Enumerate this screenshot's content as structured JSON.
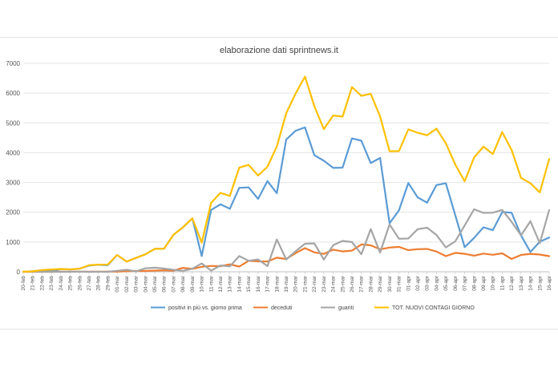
{
  "chart_data": {
    "type": "line",
    "title": "elaborazione dati sprintnews.it",
    "xlabel": "",
    "ylabel": "",
    "ylim": [
      0,
      7000
    ],
    "yticks": [
      0,
      1000,
      2000,
      3000,
      4000,
      5000,
      6000,
      7000
    ],
    "grid": true,
    "legend_position": "bottom",
    "categories": [
      "20-feb",
      "21-feb",
      "22-feb",
      "23-feb",
      "24-feb",
      "25-feb",
      "26-feb",
      "27-feb",
      "28-feb",
      "29-feb",
      "01-mar",
      "02-mar",
      "03-mar",
      "04-mar",
      "05-mar",
      "06-mar",
      "07-mar",
      "08-mar",
      "09-mar",
      "10-mar",
      "11-mar",
      "12-mar",
      "13-mar",
      "14-mar",
      "15-mar",
      "16-mar",
      "17-mar",
      "18-mar",
      "19-mar",
      "20-mar",
      "21-mar",
      "22-mar",
      "23-mar",
      "24-mar",
      "25-mar",
      "26-mar",
      "27-mar",
      "28-mar",
      "29-mar",
      "30-mar",
      "31-mar",
      "01-apr",
      "02-apr",
      "03-apr",
      "04-apr",
      "05-apr",
      "06-apr",
      "07-apr",
      "08-apr",
      "09-apr",
      "10-apr",
      "11-apr",
      "12-apr",
      "13-apr",
      "14-apr",
      "15-apr",
      "16-apr"
    ],
    "series": [
      {
        "name": "positivi in più vs. giorno prima",
        "color": "#5b9bd5",
        "values": [
          3,
          17,
          59,
          17,
          93,
          78,
          104,
          208,
          233,
          220,
          566,
          342,
          466,
          587,
          769,
          778,
          1247,
          1492,
          1797,
          529,
          2076,
          2268,
          2116,
          2820,
          2836,
          2446,
          3045,
          2641,
          4440,
          4736,
          4849,
          3915,
          3728,
          3488,
          3498,
          4481,
          4401,
          3652,
          3824,
          1628,
          2061,
          2980,
          2498,
          2320,
          2914,
          2972,
          1896,
          826,
          1135,
          1493,
          1396,
          2007,
          1984,
          1219,
          664,
          1009,
          1153
        ]
      },
      {
        "name": "deceduti",
        "color": "#ed7d31",
        "values": [
          0,
          1,
          1,
          1,
          4,
          3,
          2,
          5,
          4,
          8,
          5,
          18,
          27,
          28,
          41,
          49,
          36,
          133,
          97,
          168,
          196,
          189,
          250,
          175,
          368,
          349,
          345,
          475,
          427,
          627,
          793,
          651,
          601,
          743,
          683,
          712,
          919,
          889,
          756,
          812,
          837,
          727,
          760,
          766,
          681,
          525,
          636,
          604,
          542,
          610,
          570,
          619,
          431,
          566,
          602,
          578,
          525
        ]
      },
      {
        "name": "guariti",
        "color": "#a5a5a5",
        "values": [
          0,
          0,
          0,
          0,
          0,
          1,
          2,
          0,
          1,
          1,
          33,
          66,
          11,
          116,
          138,
          109,
          66,
          33,
          102,
          280,
          41,
          213,
          181,
          527,
          369,
          414,
          192,
          1084,
          415,
          689,
          943,
          952,
          408,
          894,
          1036,
          999,
          589,
          1434,
          646,
          1590,
          1109,
          1118,
          1431,
          1480,
          1238,
          819,
          1022,
          1555,
          2099,
          1979,
          1985,
          2079,
          1677,
          1224,
          1695,
          962,
          2072
        ]
      },
      {
        "name": "TOT. NUOVI CONTAGI GIORNO",
        "color": "#ffc000",
        "values": [
          3,
          17,
          58,
          78,
          93,
          80,
          104,
          217,
          240,
          243,
          566,
          342,
          466,
          587,
          769,
          778,
          1247,
          1492,
          1797,
          977,
          2313,
          2651,
          2547,
          3497,
          3590,
          3233,
          3526,
          4207,
          5322,
          5986,
          6557,
          5560,
          4789,
          5249,
          5210,
          6203,
          5909,
          5974,
          5217,
          4050,
          4053,
          4782,
          4668,
          4585,
          4805,
          4316,
          3599,
          3039,
          3836,
          4204,
          3951,
          4694,
          4092,
          3153,
          2972,
          2667,
          3786
        ]
      }
    ]
  }
}
